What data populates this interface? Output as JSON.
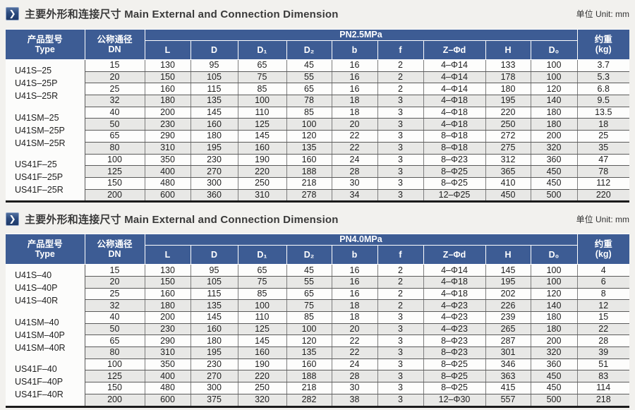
{
  "accent_color": "#3d5c94",
  "page_background": "#f2f1ee",
  "sections": [
    {
      "icon": "❯",
      "title_zh": "主要外形和连接尺寸",
      "title_en": "Main External and Connection Dimension",
      "unit_label": "单位 Unit: mm",
      "table": {
        "header": {
          "type_zh": "产品型号",
          "type_en": "Type",
          "dn_zh": "公称通径",
          "dn_en": "DN",
          "pressure": "PN2.5MPa",
          "dims": [
            "L",
            "D",
            "D₁",
            "D₂",
            "b",
            "f",
            "Z–Φd",
            "H",
            "D₀"
          ],
          "weight_zh": "约重",
          "weight_en": "(kg)"
        },
        "type_groups": [
          [
            "U41S–25",
            "U41S–25P",
            "U41S–25R"
          ],
          [
            "U41SM–25",
            "U41SM–25P",
            "U41SM–25R"
          ],
          [
            "US41F–25",
            "US41F–25P",
            "US41F–25R"
          ]
        ],
        "rows": [
          [
            "15",
            "130",
            "95",
            "65",
            "45",
            "16",
            "2",
            "4–Φ14",
            "133",
            "100",
            "3.7"
          ],
          [
            "20",
            "150",
            "105",
            "75",
            "55",
            "16",
            "2",
            "4–Φ14",
            "178",
            "100",
            "5.3"
          ],
          [
            "25",
            "160",
            "115",
            "85",
            "65",
            "16",
            "2",
            "4–Φ14",
            "180",
            "120",
            "6.8"
          ],
          [
            "32",
            "180",
            "135",
            "100",
            "78",
            "18",
            "3",
            "4–Φ18",
            "195",
            "140",
            "9.5"
          ],
          [
            "40",
            "200",
            "145",
            "110",
            "85",
            "18",
            "3",
            "4–Φ18",
            "220",
            "180",
            "13.5"
          ],
          [
            "50",
            "230",
            "160",
            "125",
            "100",
            "20",
            "3",
            "4–Φ18",
            "250",
            "180",
            "18"
          ],
          [
            "65",
            "290",
            "180",
            "145",
            "120",
            "22",
            "3",
            "8–Φ18",
            "272",
            "200",
            "25"
          ],
          [
            "80",
            "310",
            "195",
            "160",
            "135",
            "22",
            "3",
            "8–Φ18",
            "275",
            "320",
            "35"
          ],
          [
            "100",
            "350",
            "230",
            "190",
            "160",
            "24",
            "3",
            "8–Φ23",
            "312",
            "360",
            "47"
          ],
          [
            "125",
            "400",
            "270",
            "220",
            "188",
            "28",
            "3",
            "8–Φ25",
            "365",
            "450",
            "78"
          ],
          [
            "150",
            "480",
            "300",
            "250",
            "218",
            "30",
            "3",
            "8–Φ25",
            "410",
            "450",
            "112"
          ],
          [
            "200",
            "600",
            "360",
            "310",
            "278",
            "34",
            "3",
            "12–Φ25",
            "450",
            "500",
            "220"
          ]
        ]
      }
    },
    {
      "icon": "❯",
      "title_zh": "主要外形和连接尺寸",
      "title_en": "Main External and Connection Dimension",
      "unit_label": "单位 Unit: mm",
      "table": {
        "header": {
          "type_zh": "产品型号",
          "type_en": "Type",
          "dn_zh": "公称通径",
          "dn_en": "DN",
          "pressure": "PN4.0MPa",
          "dims": [
            "L",
            "D",
            "D₁",
            "D₂",
            "b",
            "f",
            "Z–Φd",
            "H",
            "D₀"
          ],
          "weight_zh": "约重",
          "weight_en": "(kg)"
        },
        "type_groups": [
          [
            "U41S–40",
            "U41S–40P",
            "U41S–40R"
          ],
          [
            "U41SM–40",
            "U41SM–40P",
            "U41SM–40R"
          ],
          [
            "US41F–40",
            "US41F–40P",
            "US41F–40R"
          ]
        ],
        "rows": [
          [
            "15",
            "130",
            "95",
            "65",
            "45",
            "16",
            "2",
            "4–Φ14",
            "145",
            "100",
            "4"
          ],
          [
            "20",
            "150",
            "105",
            "75",
            "55",
            "16",
            "2",
            "4–Φ18",
            "195",
            "100",
            "6"
          ],
          [
            "25",
            "160",
            "115",
            "85",
            "65",
            "16",
            "2",
            "4–Φ18",
            "202",
            "120",
            "8"
          ],
          [
            "32",
            "180",
            "135",
            "100",
            "75",
            "18",
            "2",
            "4–Φ23",
            "226",
            "140",
            "12"
          ],
          [
            "40",
            "200",
            "145",
            "110",
            "85",
            "18",
            "3",
            "4–Φ23",
            "239",
            "180",
            "15"
          ],
          [
            "50",
            "230",
            "160",
            "125",
            "100",
            "20",
            "3",
            "4–Φ23",
            "265",
            "180",
            "22"
          ],
          [
            "65",
            "290",
            "180",
            "145",
            "120",
            "22",
            "3",
            "8–Φ23",
            "287",
            "200",
            "28"
          ],
          [
            "80",
            "310",
            "195",
            "160",
            "135",
            "22",
            "3",
            "8–Φ23",
            "301",
            "320",
            "39"
          ],
          [
            "100",
            "350",
            "230",
            "190",
            "160",
            "24",
            "3",
            "8–Φ25",
            "346",
            "360",
            "51"
          ],
          [
            "125",
            "400",
            "270",
            "220",
            "188",
            "28",
            "3",
            "8–Φ25",
            "363",
            "450",
            "83"
          ],
          [
            "150",
            "480",
            "300",
            "250",
            "218",
            "30",
            "3",
            "8–Φ25",
            "415",
            "450",
            "114"
          ],
          [
            "200",
            "600",
            "375",
            "320",
            "282",
            "38",
            "3",
            "12–Φ30",
            "557",
            "500",
            "218"
          ]
        ]
      }
    }
  ]
}
